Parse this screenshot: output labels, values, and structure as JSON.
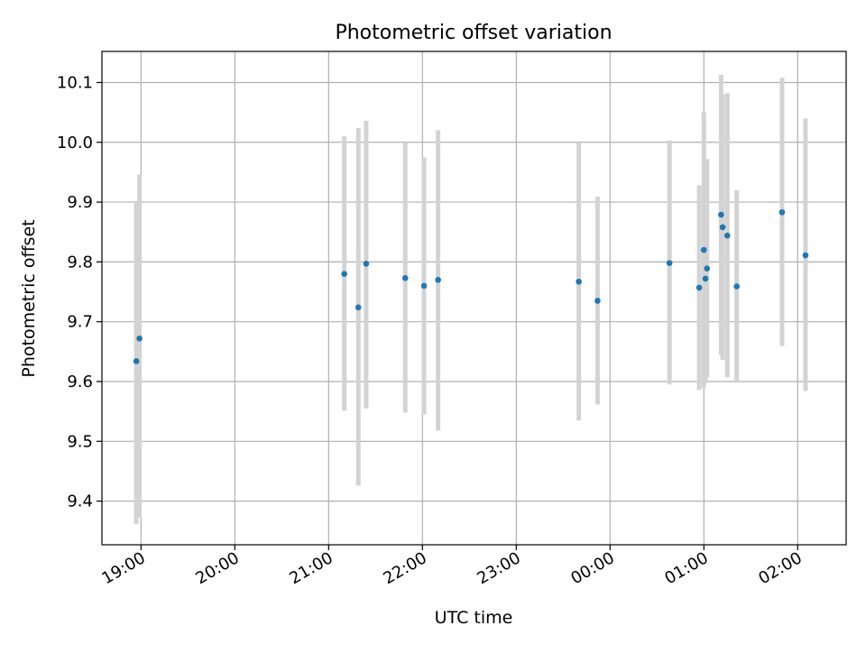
{
  "chart_data": {
    "type": "scatter",
    "title": "Photometric offset variation",
    "xlabel": "UTC time",
    "ylabel": "Photometric offset",
    "x_axis_kind": "time",
    "xlim": [
      "18:35",
      "02:31"
    ],
    "ylim": [
      9.327,
      10.152
    ],
    "grid": true,
    "x_ticks": [
      "19:00",
      "20:00",
      "21:00",
      "22:00",
      "23:00",
      "00:00",
      "01:00",
      "02:00"
    ],
    "y_ticks": [
      "9.4",
      "9.5",
      "9.6",
      "9.7",
      "9.8",
      "9.9",
      "10.0",
      "10.1"
    ],
    "series": [
      {
        "marker_color": "#1f77b4",
        "errorbar_color": "#d3d3d3",
        "points": [
          {
            "x": "18:57",
            "y": 9.634,
            "y_low": 9.362,
            "y_high": 9.902
          },
          {
            "x": "18:59",
            "y": 9.672,
            "y_low": 9.372,
            "y_high": 9.946
          },
          {
            "x": "21:10",
            "y": 9.78,
            "y_low": 9.551,
            "y_high": 10.01
          },
          {
            "x": "21:19",
            "y": 9.724,
            "y_low": 9.426,
            "y_high": 10.024
          },
          {
            "x": "21:24",
            "y": 9.797,
            "y_low": 9.555,
            "y_high": 10.036
          },
          {
            "x": "21:49",
            "y": 9.773,
            "y_low": 9.548,
            "y_high": 10.0
          },
          {
            "x": "22:01",
            "y": 9.76,
            "y_low": 9.545,
            "y_high": 9.975
          },
          {
            "x": "22:10",
            "y": 9.77,
            "y_low": 9.518,
            "y_high": 10.02
          },
          {
            "x": "23:40",
            "y": 9.767,
            "y_low": 9.535,
            "y_high": 10.0
          },
          {
            "x": "23:52",
            "y": 9.735,
            "y_low": 9.562,
            "y_high": 9.909
          },
          {
            "x": "00:38",
            "y": 9.798,
            "y_low": 9.595,
            "y_high": 10.003
          },
          {
            "x": "00:57",
            "y": 9.757,
            "y_low": 9.586,
            "y_high": 9.928
          },
          {
            "x": "01:00",
            "y": 9.82,
            "y_low": 9.59,
            "y_high": 10.05
          },
          {
            "x": "01:01",
            "y": 9.772,
            "y_low": 9.6,
            "y_high": 9.945
          },
          {
            "x": "01:02",
            "y": 9.789,
            "y_low": 9.607,
            "y_high": 9.972
          },
          {
            "x": "01:11",
            "y": 9.879,
            "y_low": 9.645,
            "y_high": 10.113
          },
          {
            "x": "01:12",
            "y": 9.858,
            "y_low": 9.636,
            "y_high": 10.08
          },
          {
            "x": "01:15",
            "y": 9.844,
            "y_low": 9.607,
            "y_high": 10.082
          },
          {
            "x": "01:21",
            "y": 9.759,
            "y_low": 9.598,
            "y_high": 9.92
          },
          {
            "x": "01:50",
            "y": 9.883,
            "y_low": 9.659,
            "y_high": 10.108
          },
          {
            "x": "02:05",
            "y": 9.811,
            "y_low": 9.584,
            "y_high": 10.04
          }
        ]
      }
    ]
  },
  "colors": {
    "grid": "#b0b0b0",
    "axes": "#000000",
    "background": "#ffffff"
  }
}
